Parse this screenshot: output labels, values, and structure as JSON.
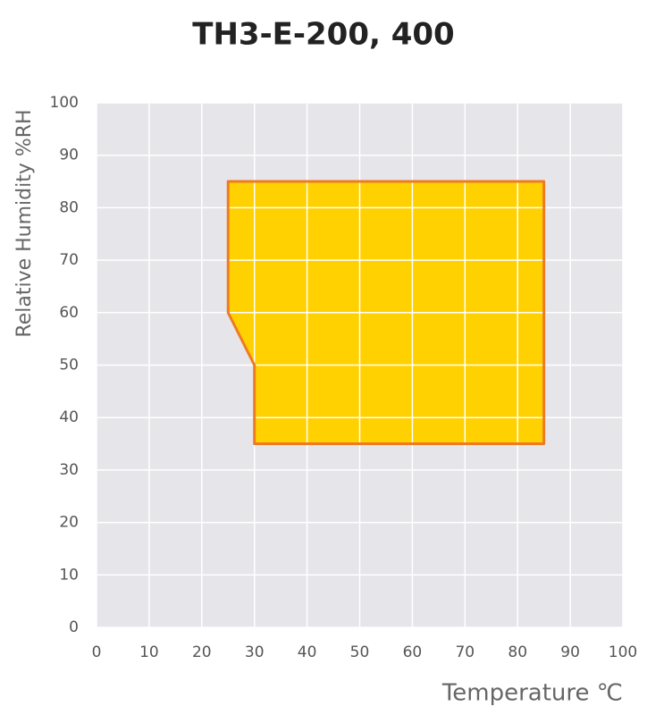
{
  "chart_data": {
    "type": "area",
    "title": "TH3-E-200, 400",
    "x_label": "Temperature ℃",
    "y_label": "Relative Humidity %RH",
    "x": [
      25,
      85,
      85,
      30,
      30,
      25
    ],
    "values": [
      85,
      85,
      35,
      35,
      50,
      60
    ],
    "color": "#ffd100",
    "edge_color": "#f07a22",
    "xlim": [
      0,
      100
    ],
    "xticks": [
      0,
      10,
      20,
      30,
      40,
      50,
      60,
      70,
      80,
      90,
      100
    ],
    "ylim": [
      0,
      100
    ],
    "yticks": [
      0,
      10,
      20,
      30,
      40,
      50,
      60,
      70,
      80,
      90,
      100
    ],
    "grid": true
  }
}
